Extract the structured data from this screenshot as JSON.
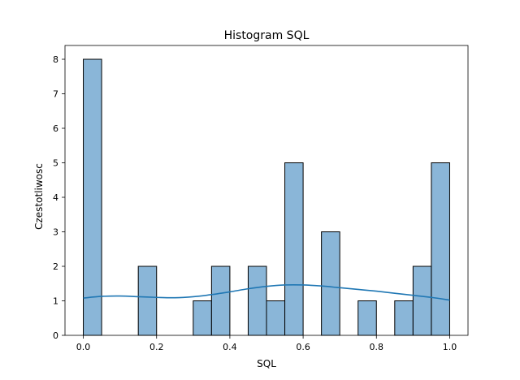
{
  "chart_data": {
    "type": "bar",
    "title": "Histogram SQL",
    "xlabel": "SQL",
    "ylabel": "Czestotliwosc",
    "xlim": [
      -0.05,
      1.05
    ],
    "ylim": [
      0,
      8.4
    ],
    "xticks": [
      0.0,
      0.2,
      0.4,
      0.6,
      0.8,
      1.0
    ],
    "xtick_labels": [
      "0.0",
      "0.2",
      "0.4",
      "0.6",
      "0.8",
      "1.0"
    ],
    "yticks": [
      0,
      1,
      2,
      3,
      4,
      5,
      6,
      7,
      8
    ],
    "ytick_labels": [
      "0",
      "1",
      "2",
      "3",
      "4",
      "5",
      "6",
      "7",
      "8"
    ],
    "bins": [
      {
        "x0": 0.0,
        "x1": 0.05,
        "count": 8
      },
      {
        "x0": 0.05,
        "x1": 0.1,
        "count": 0
      },
      {
        "x0": 0.1,
        "x1": 0.15,
        "count": 0
      },
      {
        "x0": 0.15,
        "x1": 0.2,
        "count": 2
      },
      {
        "x0": 0.2,
        "x1": 0.25,
        "count": 0
      },
      {
        "x0": 0.25,
        "x1": 0.3,
        "count": 0
      },
      {
        "x0": 0.3,
        "x1": 0.35,
        "count": 1
      },
      {
        "x0": 0.35,
        "x1": 0.4,
        "count": 2
      },
      {
        "x0": 0.4,
        "x1": 0.45,
        "count": 0
      },
      {
        "x0": 0.45,
        "x1": 0.5,
        "count": 2
      },
      {
        "x0": 0.5,
        "x1": 0.55,
        "count": 1
      },
      {
        "x0": 0.55,
        "x1": 0.6,
        "count": 5
      },
      {
        "x0": 0.6,
        "x1": 0.65,
        "count": 0
      },
      {
        "x0": 0.65,
        "x1": 0.7,
        "count": 3
      },
      {
        "x0": 0.7,
        "x1": 0.75,
        "count": 0
      },
      {
        "x0": 0.75,
        "x1": 0.8,
        "count": 1
      },
      {
        "x0": 0.8,
        "x1": 0.85,
        "count": 0
      },
      {
        "x0": 0.85,
        "x1": 0.9,
        "count": 1
      },
      {
        "x0": 0.9,
        "x1": 0.95,
        "count": 2
      },
      {
        "x0": 0.95,
        "x1": 1.0,
        "count": 5
      }
    ],
    "kde": {
      "x": [
        0.0,
        0.05,
        0.1,
        0.15,
        0.2,
        0.25,
        0.3,
        0.35,
        0.4,
        0.45,
        0.5,
        0.55,
        0.6,
        0.65,
        0.7,
        0.75,
        0.8,
        0.85,
        0.9,
        0.95,
        1.0
      ],
      "y": [
        1.08,
        1.13,
        1.14,
        1.12,
        1.1,
        1.09,
        1.12,
        1.18,
        1.26,
        1.35,
        1.42,
        1.46,
        1.46,
        1.43,
        1.38,
        1.33,
        1.28,
        1.22,
        1.16,
        1.1,
        1.02
      ]
    },
    "colors": {
      "bar_fill": "#8ab6d8",
      "bar_edge": "#000000",
      "kde_line": "#1f77b4"
    },
    "grid": false,
    "legend": "none"
  }
}
